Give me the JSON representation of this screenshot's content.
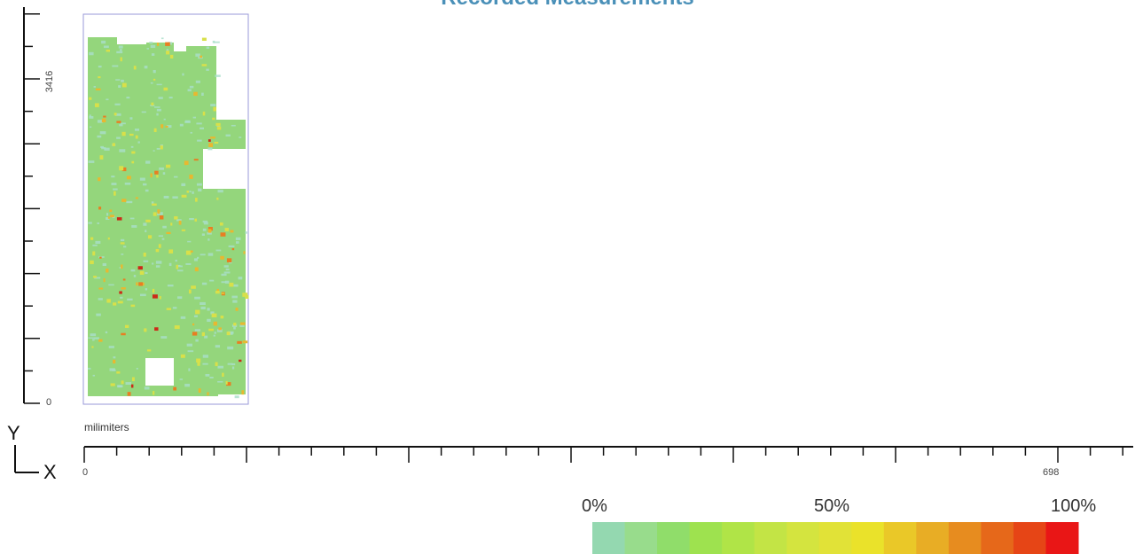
{
  "title": "Recorded Measurements",
  "chart_data": {
    "type": "heatmap",
    "title": "Recorded Measurements",
    "units": "milimiters",
    "x_axis": {
      "min_label": "0",
      "max_label": "698",
      "min": 0,
      "max": 698
    },
    "y_axis": {
      "min_label": "0",
      "max_label": "3416",
      "min": 0,
      "max": 3416
    },
    "axis_letters": {
      "y": "Y",
      "x": "X"
    },
    "legend": {
      "labels": [
        "0%",
        "50%",
        "100%"
      ],
      "colors": [
        "#94d8b0",
        "#98dc8c",
        "#90dd6a",
        "#9ee24f",
        "#b0e447",
        "#c3e445",
        "#d4e43f",
        "#e1e237",
        "#eae22a",
        "#eac828",
        "#e8ad25",
        "#e78c1f",
        "#e6681a",
        "#e64516",
        "#e91616"
      ]
    },
    "heatmap_colors": {
      "background": "#94d67c",
      "cold": "#a9dfc9",
      "hot_levels": [
        "#d8e04a",
        "#e8b830",
        "#e87e22",
        "#cc2a18"
      ]
    }
  }
}
